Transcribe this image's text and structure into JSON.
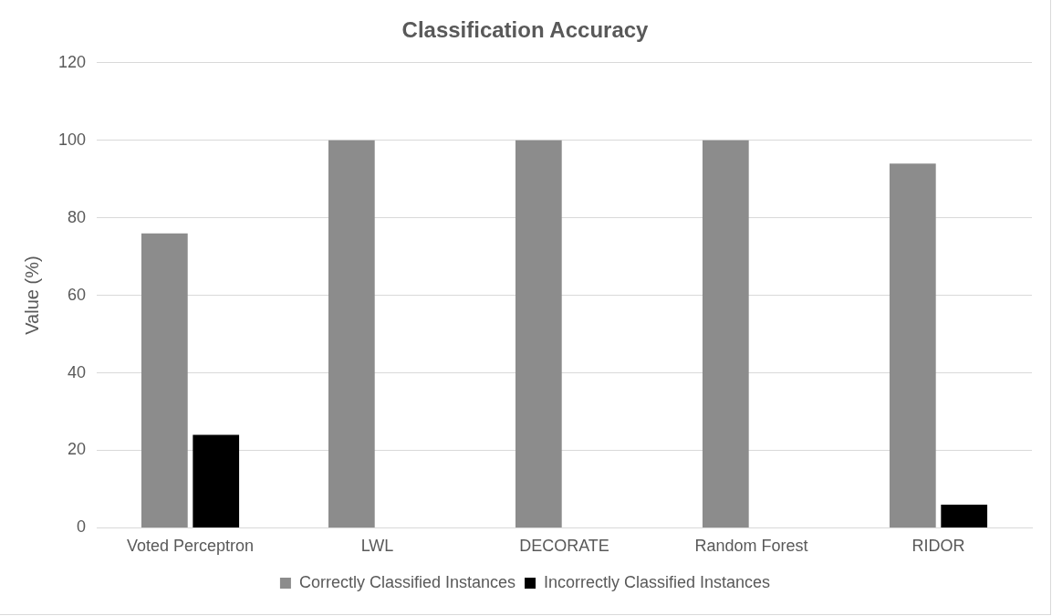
{
  "chart_data": {
    "type": "bar",
    "title": "Classification Accuracy",
    "ylabel": "Value (%)",
    "categories": [
      "Voted Perceptron",
      "LWL",
      "DECORATE",
      "Random Forest",
      "RIDOR"
    ],
    "series": [
      {
        "name": "Correctly Classified Instances",
        "color": "#8c8c8c",
        "values": [
          76,
          100,
          100,
          100,
          94
        ]
      },
      {
        "name": "Incorrectly Classified Instances",
        "color": "#000000",
        "values": [
          24,
          0,
          0,
          0,
          6
        ]
      }
    ],
    "ylim": [
      0,
      120
    ],
    "yticks": [
      0,
      20,
      40,
      60,
      80,
      100,
      120
    ],
    "grid": "y",
    "legend": "bottom"
  }
}
